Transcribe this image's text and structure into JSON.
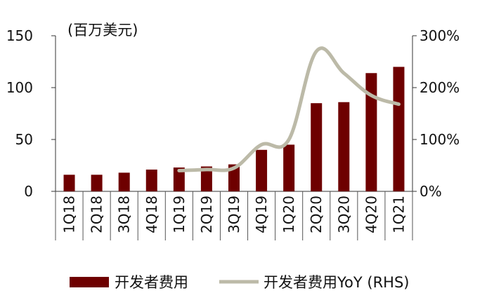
{
  "chart_data": {
    "type": "bar",
    "title": "",
    "unit_label": "(百万美元)",
    "categories": [
      "1Q18",
      "2Q18",
      "3Q18",
      "4Q18",
      "1Q19",
      "2Q19",
      "3Q19",
      "4Q19",
      "1Q20",
      "2Q20",
      "3Q20",
      "4Q20",
      "1Q21"
    ],
    "left_axis": {
      "min": 0,
      "max": 150,
      "ticks": [
        "0",
        "50",
        "100",
        "150"
      ],
      "tick_values": [
        0,
        50,
        100,
        150
      ]
    },
    "right_axis": {
      "min": 0,
      "max": 300,
      "ticks": [
        "0%",
        "100%",
        "200%",
        "300%"
      ],
      "tick_values": [
        0,
        100,
        200,
        300
      ]
    },
    "series": [
      {
        "name": "开发者费用",
        "kind": "bar",
        "axis": "left",
        "color": "#6e0000",
        "values": [
          16,
          16,
          18,
          21,
          23,
          24,
          26,
          40,
          45,
          85,
          86,
          114,
          120
        ]
      },
      {
        "name": "开发者费用YoY (RHS)",
        "kind": "line",
        "axis": "right",
        "color": "#bcbaa8",
        "values": [
          null,
          null,
          null,
          null,
          40,
          42,
          45,
          90,
          100,
          270,
          228,
          185,
          168
        ]
      }
    ],
    "legend": {
      "placement": "bottom"
    },
    "grid": false
  }
}
